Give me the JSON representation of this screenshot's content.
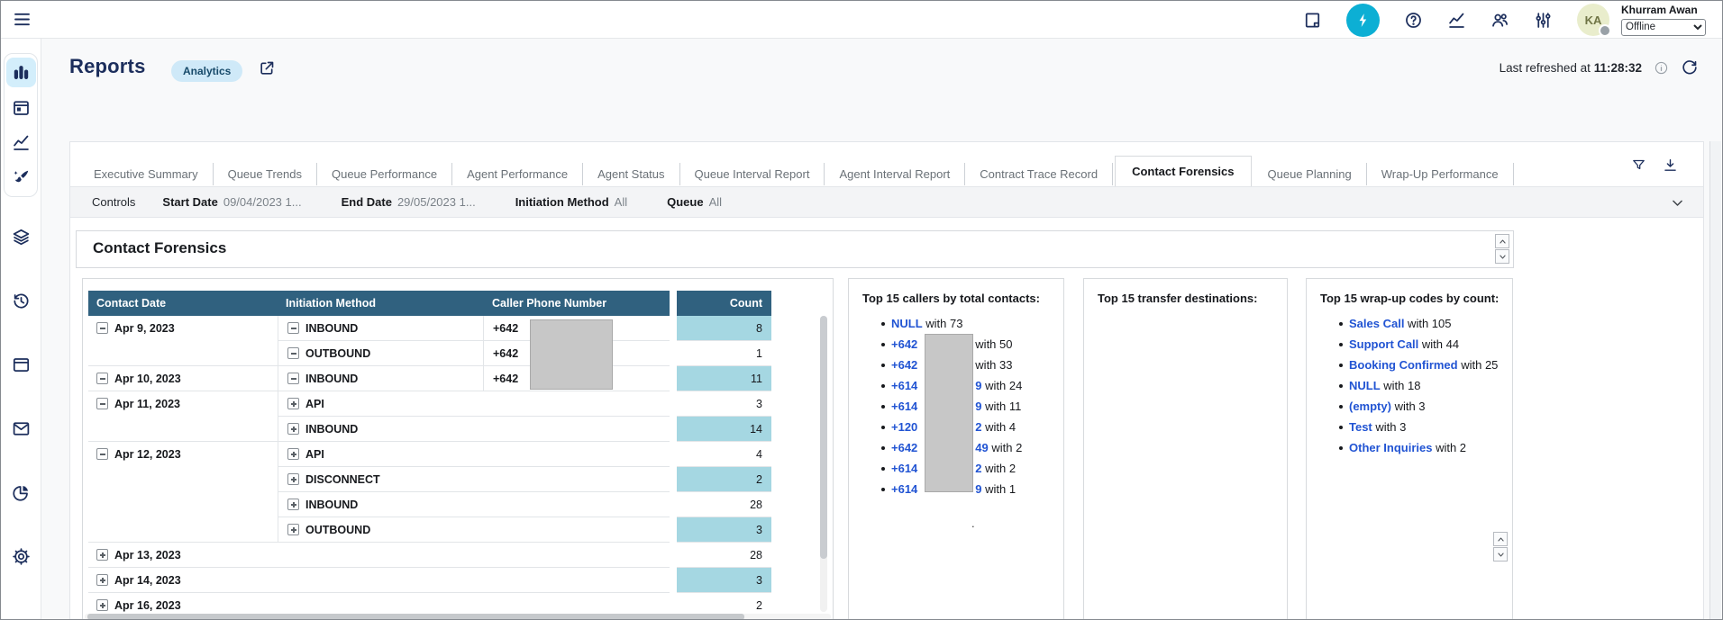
{
  "topbar": {
    "user": {
      "initials": "KA",
      "name": "Khurram Awan",
      "status": "Offline"
    },
    "icons": [
      {
        "icon": "notes",
        "name": "notes-icon"
      },
      {
        "icon": "bolt",
        "name": "realtime-metrics-icon",
        "accent": true
      },
      {
        "icon": "help",
        "name": "help-icon"
      },
      {
        "icon": "line-chart",
        "name": "metrics-icon"
      },
      {
        "icon": "users",
        "name": "agents-icon"
      },
      {
        "icon": "sliders",
        "name": "settings-sliders-icon"
      }
    ]
  },
  "sidebar": {
    "items": [
      {
        "icon": "bar-chart",
        "name": "sidebar-item-dashboards",
        "active": true,
        "grouped": true
      },
      {
        "icon": "calendar",
        "name": "sidebar-item-schedule",
        "grouped": true
      },
      {
        "icon": "line-chart",
        "name": "sidebar-item-metrics",
        "grouped": true
      },
      {
        "icon": "brush",
        "name": "sidebar-item-design",
        "grouped": true
      },
      {
        "icon": "layers",
        "name": "sidebar-item-layers"
      },
      {
        "icon": "history",
        "name": "sidebar-item-history"
      },
      {
        "icon": "window",
        "name": "sidebar-item-workspace"
      },
      {
        "icon": "mail",
        "name": "sidebar-item-mail"
      },
      {
        "icon": "pie-chart",
        "name": "sidebar-item-reports"
      },
      {
        "icon": "gear",
        "name": "sidebar-item-settings"
      }
    ]
  },
  "header": {
    "title": "Reports",
    "badge": "Analytics",
    "refreshed_label": "Last refreshed at",
    "refreshed_time": "11:28:32"
  },
  "tabs": {
    "active": "Contact Forensics",
    "items": [
      "Executive Summary",
      "Queue Trends",
      "Queue Performance",
      "Agent Performance",
      "Agent Status",
      "Queue Interval Report",
      "Agent Interval Report",
      "Contract Trace Record",
      "Contact Forensics",
      "Queue Planning",
      "Wrap-Up Performance"
    ]
  },
  "controls": {
    "label": "Controls",
    "filters": [
      {
        "label": "Start Date",
        "value": "09/04/2023 1..."
      },
      {
        "label": "End Date",
        "value": "29/05/2023 1..."
      },
      {
        "label": "Initiation Method",
        "value": "All"
      },
      {
        "label": "Queue",
        "value": "All"
      }
    ]
  },
  "report": {
    "title": "Contact Forensics"
  },
  "table": {
    "columns": [
      "Contact Date",
      "Initiation Method",
      "Caller Phone Number",
      "Count"
    ],
    "rows": [
      {
        "date": "Apr 9, 2023",
        "dateToggle": "collapse",
        "method": "INBOUND",
        "methodToggle": "collapse",
        "phone": "+642",
        "count": "8",
        "highlight": true
      },
      {
        "date": "",
        "dateToggle": null,
        "method": "OUTBOUND",
        "methodToggle": "collapse",
        "phone": "+642",
        "count": "1",
        "highlight": false
      },
      {
        "date": "Apr 10, 2023",
        "dateToggle": "collapse",
        "method": "INBOUND",
        "methodToggle": "collapse",
        "phone": "+642",
        "count": "11",
        "highlight": true
      },
      {
        "date": "Apr 11, 2023",
        "dateToggle": "collapse",
        "method": "API",
        "methodToggle": "expand",
        "phone": "",
        "count": "3",
        "highlight": false
      },
      {
        "date": "",
        "dateToggle": null,
        "method": "INBOUND",
        "methodToggle": "expand",
        "phone": "",
        "count": "14",
        "highlight": true
      },
      {
        "date": "Apr 12, 2023",
        "dateToggle": "collapse",
        "method": "API",
        "methodToggle": "expand",
        "phone": "",
        "count": "4",
        "highlight": false
      },
      {
        "date": "",
        "dateToggle": null,
        "method": "DISCONNECT",
        "methodToggle": "expand",
        "phone": "",
        "count": "2",
        "highlight": true
      },
      {
        "date": "",
        "dateToggle": null,
        "method": "INBOUND",
        "methodToggle": "expand",
        "phone": "",
        "count": "28",
        "highlight": false
      },
      {
        "date": "",
        "dateToggle": null,
        "method": "OUTBOUND",
        "methodToggle": "expand",
        "phone": "",
        "count": "3",
        "highlight": true
      },
      {
        "date": "Apr 13, 2023",
        "dateToggle": "expand",
        "method": "",
        "methodToggle": null,
        "phone": "",
        "count": "28",
        "highlight": false
      },
      {
        "date": "Apr 14, 2023",
        "dateToggle": "expand",
        "method": "",
        "methodToggle": null,
        "phone": "",
        "count": "3",
        "highlight": true
      },
      {
        "date": "Apr 16, 2023",
        "dateToggle": "expand",
        "method": "",
        "methodToggle": null,
        "phone": "",
        "count": "2",
        "highlight": false
      }
    ]
  },
  "panels": [
    {
      "title": "Top 15 callers by total contacts:",
      "trailing_dot": ".",
      "items": [
        {
          "link": "NULL",
          "suffix": "",
          "rest": " with 73",
          "redacted": false
        },
        {
          "link": "+642",
          "suffix": "",
          "rest": "with 50",
          "redacted": true
        },
        {
          "link": "+642",
          "suffix": "",
          "rest": "with 33",
          "redacted": true
        },
        {
          "link": "+614",
          "suffix": "9",
          "rest": " with 24",
          "redacted": true
        },
        {
          "link": "+614",
          "suffix": "9",
          "rest": " with 11",
          "redacted": true
        },
        {
          "link": "+120",
          "suffix": "2",
          "rest": " with 4",
          "redacted": true
        },
        {
          "link": "+642",
          "suffix": "49",
          "rest": " with 2",
          "redacted": true
        },
        {
          "link": "+614",
          "suffix": "2",
          "rest": " with 2",
          "redacted": true
        },
        {
          "link": "+614",
          "suffix": "9",
          "rest": " with 1",
          "redacted": true
        }
      ]
    },
    {
      "title": "Top 15 transfer destinations:",
      "items": []
    },
    {
      "title": "Top 15 wrap-up codes by count:",
      "items": [
        {
          "link": "Sales Call",
          "suffix": "",
          "rest": " with 105",
          "redacted": false
        },
        {
          "link": "Support Call",
          "suffix": "",
          "rest": " with 44",
          "redacted": false
        },
        {
          "link": "Booking Confirmed",
          "suffix": "",
          "rest": " with 25",
          "redacted": false
        },
        {
          "link": "NULL",
          "suffix": "",
          "rest": " with 18",
          "redacted": false
        },
        {
          "link": "(empty)",
          "suffix": "",
          "rest": " with 3",
          "redacted": false
        },
        {
          "link": "Test",
          "suffix": "",
          "rest": " with 3",
          "redacted": false
        },
        {
          "link": "Other Inquiries",
          "suffix": "",
          "rest": " with 2",
          "redacted": false
        }
      ]
    }
  ]
}
